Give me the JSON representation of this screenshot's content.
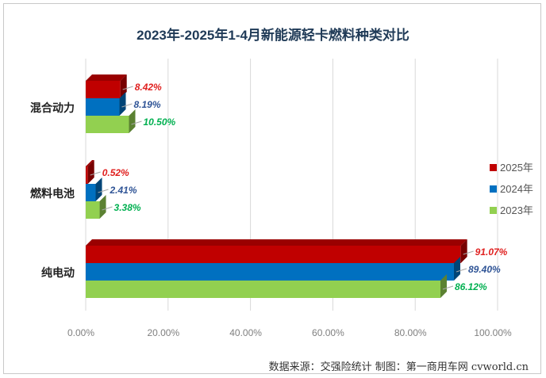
{
  "chart_data": {
    "type": "bar",
    "orientation": "horizontal",
    "style": "3d",
    "title": "2023年-2025年1-4月新能源轻卡燃料种类对比",
    "categories": [
      "混合动力",
      "燃料电池",
      "纯电动"
    ],
    "series": [
      {
        "name": "2025年",
        "color": "#c00000",
        "label_color": "#e0201f",
        "values": [
          8.42,
          0.52,
          91.07
        ],
        "labels": [
          "8.42%",
          "0.52%",
          "91.07%"
        ]
      },
      {
        "name": "2024年",
        "color": "#0070c0",
        "label_color": "#2f5496",
        "values": [
          8.19,
          2.41,
          89.4
        ],
        "labels": [
          "8.19%",
          "2.41%",
          "89.40%"
        ]
      },
      {
        "name": "2023年",
        "color": "#92d050",
        "label_color": "#00b050",
        "values": [
          10.5,
          3.38,
          86.12
        ],
        "labels": [
          "10.50%",
          "3.38%",
          "86.12%"
        ]
      }
    ],
    "xlim": [
      0,
      100
    ],
    "x_ticks": [
      0,
      20,
      40,
      60,
      80,
      100
    ],
    "x_tick_labels": [
      "0.00%",
      "20.00%",
      "40.00%",
      "60.00%",
      "80.00%",
      "100.00%"
    ],
    "grid": true,
    "legend_position": "right"
  },
  "source_text": "数据来源：交强险统计   制图：第一商用车网 cvworld.cn"
}
